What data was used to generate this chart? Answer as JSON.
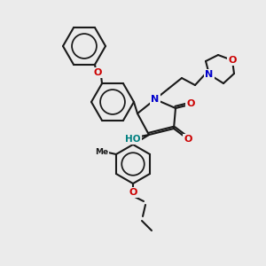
{
  "background_color": "#ebebeb",
  "bond_color": "#1a1a1a",
  "bond_width": 1.5,
  "atom_colors": {
    "N": "#0000cc",
    "O": "#cc0000",
    "H": "#008080",
    "C": "#1a1a1a"
  }
}
